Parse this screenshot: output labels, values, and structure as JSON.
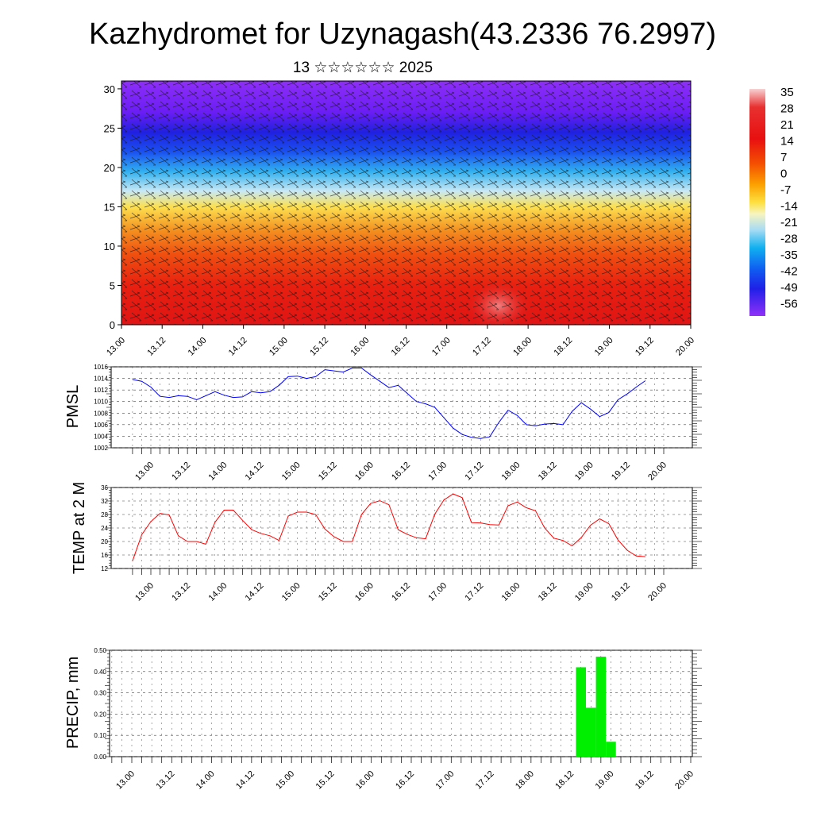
{
  "page": {
    "title": "Kazhydromet for Uzynagash(43.2336 76.2997)",
    "subtitle": "13 ☆☆☆☆☆☆ 2025"
  },
  "x_tick_labels": [
    "13.00",
    "13.12",
    "14.00",
    "14.12",
    "15.00",
    "15.12",
    "16.00",
    "16.12",
    "17.00",
    "17.12",
    "18.00",
    "18.12",
    "19.00",
    "19.12",
    "20.00"
  ],
  "chart_data": [
    {
      "type": "heatmap",
      "name": "temperature-wind-cross-section",
      "x_range": [
        "13.00",
        "20.00"
      ],
      "y_ticks": [
        0,
        5,
        10,
        15,
        20,
        25,
        30
      ],
      "ylim": [
        0,
        31
      ],
      "colorbar_labels": [
        "35",
        "28",
        "21",
        "14",
        "7",
        "0",
        "-7",
        "-14",
        "-21",
        "-28",
        "-35",
        "-42",
        "-49",
        "-56"
      ],
      "colorbar_colors": [
        "#f4c4c4",
        "#ee3030",
        "#e01010",
        "#f04000",
        "#f48000",
        "#fbc000",
        "#fff070",
        "#f4f0b8",
        "#a8e0f4",
        "#20b8f0",
        "#2070f0",
        "#2030e8",
        "#5018f0",
        "#8a30f8"
      ],
      "bands": [
        {
          "height": 0,
          "color": "#e01414"
        },
        {
          "height": 5,
          "color": "#e82010"
        },
        {
          "height": 9,
          "color": "#f05010"
        },
        {
          "height": 12,
          "color": "#f49020"
        },
        {
          "height": 15,
          "color": "#fde050"
        },
        {
          "height": 17,
          "color": "#c8e8f4"
        },
        {
          "height": 19.5,
          "color": "#30b0f0"
        },
        {
          "height": 22,
          "color": "#1a50f0"
        },
        {
          "height": 24.5,
          "color": "#2020e0"
        },
        {
          "height": 27,
          "color": "#6a1ef4"
        },
        {
          "height": 31,
          "color": "#8e2ef8"
        }
      ]
    },
    {
      "type": "line",
      "name": "pmsl",
      "ylabel": "PMSL",
      "ylim": [
        1002,
        1016
      ],
      "y_ticks": [
        1002,
        1004,
        1006,
        1008,
        1010,
        1012,
        1014,
        1016
      ],
      "color": "#0000ff",
      "x": [
        -0.25,
        -0.125,
        0,
        0.125,
        0.25,
        0.375,
        0.5,
        0.625,
        0.75,
        0.875,
        1,
        1.125,
        1.25,
        1.375,
        1.5,
        1.625,
        1.75,
        1.875,
        2,
        2.125,
        2.25,
        2.375,
        2.5,
        2.625,
        2.75,
        2.875,
        3,
        3.125,
        3.25,
        3.375,
        3.5,
        3.625,
        3.75,
        3.875,
        4,
        4.125,
        4.25,
        4.375,
        4.5,
        4.625,
        4.75,
        4.875,
        5,
        5.125,
        5.25,
        5.375,
        5.5,
        5.625,
        5.75,
        5.875,
        6,
        6.125,
        6.25,
        6.375,
        6.5,
        6.625,
        6.75
      ],
      "values": [
        1013.8,
        1013.5,
        1012.5,
        1010.9,
        1010.7,
        1011.0,
        1010.9,
        1010.3,
        1011.0,
        1011.7,
        1011.1,
        1010.7,
        1010.8,
        1011.7,
        1011.5,
        1011.7,
        1012.8,
        1014.3,
        1014.4,
        1014.0,
        1014.3,
        1015.5,
        1015.3,
        1015.1,
        1015.8,
        1015.8,
        1014.6,
        1013.5,
        1012.4,
        1012.8,
        1011.4,
        1010.0,
        1009.6,
        1009.0,
        1007.2,
        1005.4,
        1004.3,
        1003.8,
        1003.6,
        1003.9,
        1006.4,
        1008.5,
        1007.6,
        1006.0,
        1005.8,
        1006.1,
        1006.2,
        1006.0,
        1008.3,
        1009.8,
        1008.7,
        1007.4,
        1008.1,
        1010.3,
        1011.3,
        1012.5,
        1013.6
      ]
    },
    {
      "type": "line",
      "name": "temp-2m",
      "ylabel": "TEMP at 2 M",
      "ylim": [
        12,
        36
      ],
      "y_ticks": [
        12,
        16,
        20,
        24,
        28,
        32,
        36
      ],
      "color": "#ff0000",
      "x": [
        -0.25,
        -0.125,
        0,
        0.125,
        0.25,
        0.375,
        0.5,
        0.625,
        0.75,
        0.875,
        1,
        1.125,
        1.25,
        1.375,
        1.5,
        1.625,
        1.75,
        1.875,
        2,
        2.125,
        2.25,
        2.375,
        2.5,
        2.625,
        2.75,
        2.875,
        3,
        3.125,
        3.25,
        3.375,
        3.5,
        3.625,
        3.75,
        3.875,
        4,
        4.125,
        4.25,
        4.375,
        4.5,
        4.625,
        4.75,
        4.875,
        5,
        5.125,
        5.25,
        5.375,
        5.5,
        5.625,
        5.75,
        5.875,
        6,
        6.125,
        6.25,
        6.375,
        6.5,
        6.625,
        6.75
      ],
      "values": [
        14.2,
        22.0,
        25.9,
        28.3,
        27.9,
        21.7,
        20.0,
        20.0,
        19.2,
        25.7,
        29.3,
        29.3,
        26.3,
        23.5,
        22.4,
        21.7,
        20.3,
        27.5,
        28.7,
        28.7,
        28.0,
        23.7,
        21.4,
        20.0,
        20.0,
        28.0,
        31.3,
        32.1,
        30.9,
        23.5,
        22.1,
        21.1,
        20.8,
        28.1,
        32.3,
        34.1,
        33.0,
        25.6,
        25.5,
        25.0,
        24.9,
        30.6,
        31.7,
        30.0,
        29.1,
        24.0,
        21.0,
        20.3,
        18.7,
        21.2,
        24.8,
        26.7,
        25.3,
        20.5,
        17.4,
        15.7,
        15.5
      ]
    },
    {
      "type": "bar",
      "name": "precip",
      "ylabel": "PRECIP, mm",
      "ylim": [
        0,
        0.5
      ],
      "y_ticks": [
        "0.00",
        "0.10",
        "0.20",
        "0.30",
        "0.40",
        "0.50"
      ],
      "color": "#00ee00",
      "bars": [
        {
          "x": 5.625,
          "value": 0.42
        },
        {
          "x": 5.75,
          "value": 0.23
        },
        {
          "x": 5.875,
          "value": 0.47
        },
        {
          "x": 6.0,
          "value": 0.07
        }
      ]
    }
  ]
}
